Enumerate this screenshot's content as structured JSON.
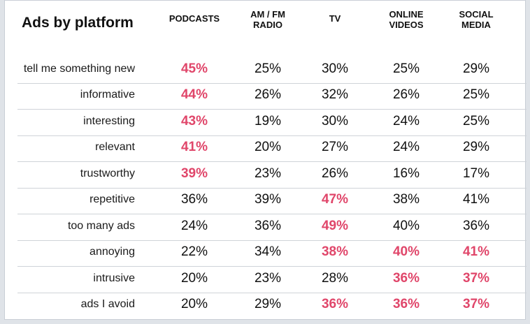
{
  "chart_data": {
    "type": "table",
    "title": "Ads by platform",
    "columns": [
      "PODCASTS",
      "AM / FM RADIO",
      "TV",
      "ONLINE VIDEOS",
      "SOCIAL MEDIA"
    ],
    "highlight_color": "#e0466a",
    "text_color": "#111111",
    "rows": [
      {
        "label": "tell me something new",
        "values": [
          45,
          25,
          30,
          25,
          29
        ],
        "highlight": [
          true,
          false,
          false,
          false,
          false
        ]
      },
      {
        "label": "informative",
        "values": [
          44,
          26,
          32,
          26,
          25
        ],
        "highlight": [
          true,
          false,
          false,
          false,
          false
        ]
      },
      {
        "label": "interesting",
        "values": [
          43,
          19,
          30,
          24,
          25
        ],
        "highlight": [
          true,
          false,
          false,
          false,
          false
        ]
      },
      {
        "label": "relevant",
        "values": [
          41,
          20,
          27,
          24,
          29
        ],
        "highlight": [
          true,
          false,
          false,
          false,
          false
        ]
      },
      {
        "label": "trustworthy",
        "values": [
          39,
          23,
          26,
          16,
          17
        ],
        "highlight": [
          true,
          false,
          false,
          false,
          false
        ]
      },
      {
        "label": "repetitive",
        "values": [
          36,
          39,
          47,
          38,
          41
        ],
        "highlight": [
          false,
          false,
          true,
          false,
          false
        ]
      },
      {
        "label": "too many ads",
        "values": [
          24,
          36,
          49,
          40,
          36
        ],
        "highlight": [
          false,
          false,
          true,
          false,
          false
        ]
      },
      {
        "label": "annoying",
        "values": [
          22,
          34,
          38,
          40,
          41
        ],
        "highlight": [
          false,
          false,
          true,
          true,
          true
        ]
      },
      {
        "label": "intrusive",
        "values": [
          20,
          23,
          28,
          36,
          37
        ],
        "highlight": [
          false,
          false,
          false,
          true,
          true
        ]
      },
      {
        "label": "ads I avoid",
        "values": [
          20,
          29,
          36,
          36,
          37
        ],
        "highlight": [
          false,
          false,
          true,
          true,
          true
        ]
      }
    ],
    "value_suffix": "%"
  }
}
